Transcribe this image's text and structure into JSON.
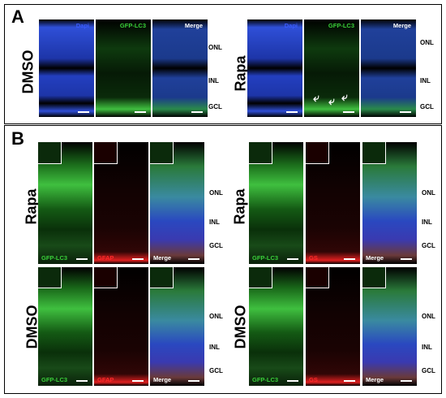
{
  "panelA": {
    "letter": "A",
    "left": {
      "row_label": "DMSO",
      "tiles": [
        {
          "label": "Dapi",
          "channel": "blue"
        },
        {
          "label": "GFP-LC3",
          "channel": "green"
        },
        {
          "label": "Merge",
          "channel": "merge"
        }
      ],
      "layers": [
        "ONL",
        "INL",
        "GCL"
      ]
    },
    "right": {
      "row_label": "Rapa",
      "tiles": [
        {
          "label": "Dapi",
          "channel": "blue"
        },
        {
          "label": "GFP-LC3",
          "channel": "green"
        },
        {
          "label": "Merge",
          "channel": "merge"
        }
      ],
      "layers": [
        "ONL",
        "INL",
        "GCL"
      ]
    }
  },
  "panelB": {
    "letter": "B",
    "topleft": {
      "row_label": "Rapa",
      "tiles": [
        {
          "label": "GFP-LC3",
          "channel": "green"
        },
        {
          "label": "GFAP",
          "channel": "red"
        },
        {
          "label": "Merge",
          "channel": "merge"
        }
      ],
      "layers": [
        "ONL",
        "INL",
        "GCL"
      ]
    },
    "topright": {
      "row_label": "Rapa",
      "tiles": [
        {
          "label": "GFP-LC3",
          "channel": "green"
        },
        {
          "label": "GS",
          "channel": "red"
        },
        {
          "label": "Merge",
          "channel": "merge"
        }
      ],
      "layers": [
        "ONL",
        "INL",
        "GCL"
      ]
    },
    "bottomleft": {
      "row_label": "DMSO",
      "tiles": [
        {
          "label": "GFP-LC3",
          "channel": "green"
        },
        {
          "label": "GFAP",
          "channel": "red"
        },
        {
          "label": "Merge",
          "channel": "merge"
        }
      ],
      "layers": [
        "ONL",
        "INL",
        "GCL"
      ]
    },
    "bottomright": {
      "row_label": "DMSO",
      "tiles": [
        {
          "label": "GFP-LC3",
          "channel": "green"
        },
        {
          "label": "GS",
          "channel": "red"
        },
        {
          "label": "Merge",
          "channel": "merge"
        }
      ],
      "layers": [
        "ONL",
        "INL",
        "GCL"
      ]
    }
  },
  "colors": {
    "dapi_blue": "#2f4fd8",
    "gfp_green": "#3fbf3f",
    "red": "#e02020",
    "label_blue": "#3a5cff",
    "label_green": "#3ad13a",
    "label_red": "#ff2a2a",
    "label_white": "#ffffff"
  }
}
